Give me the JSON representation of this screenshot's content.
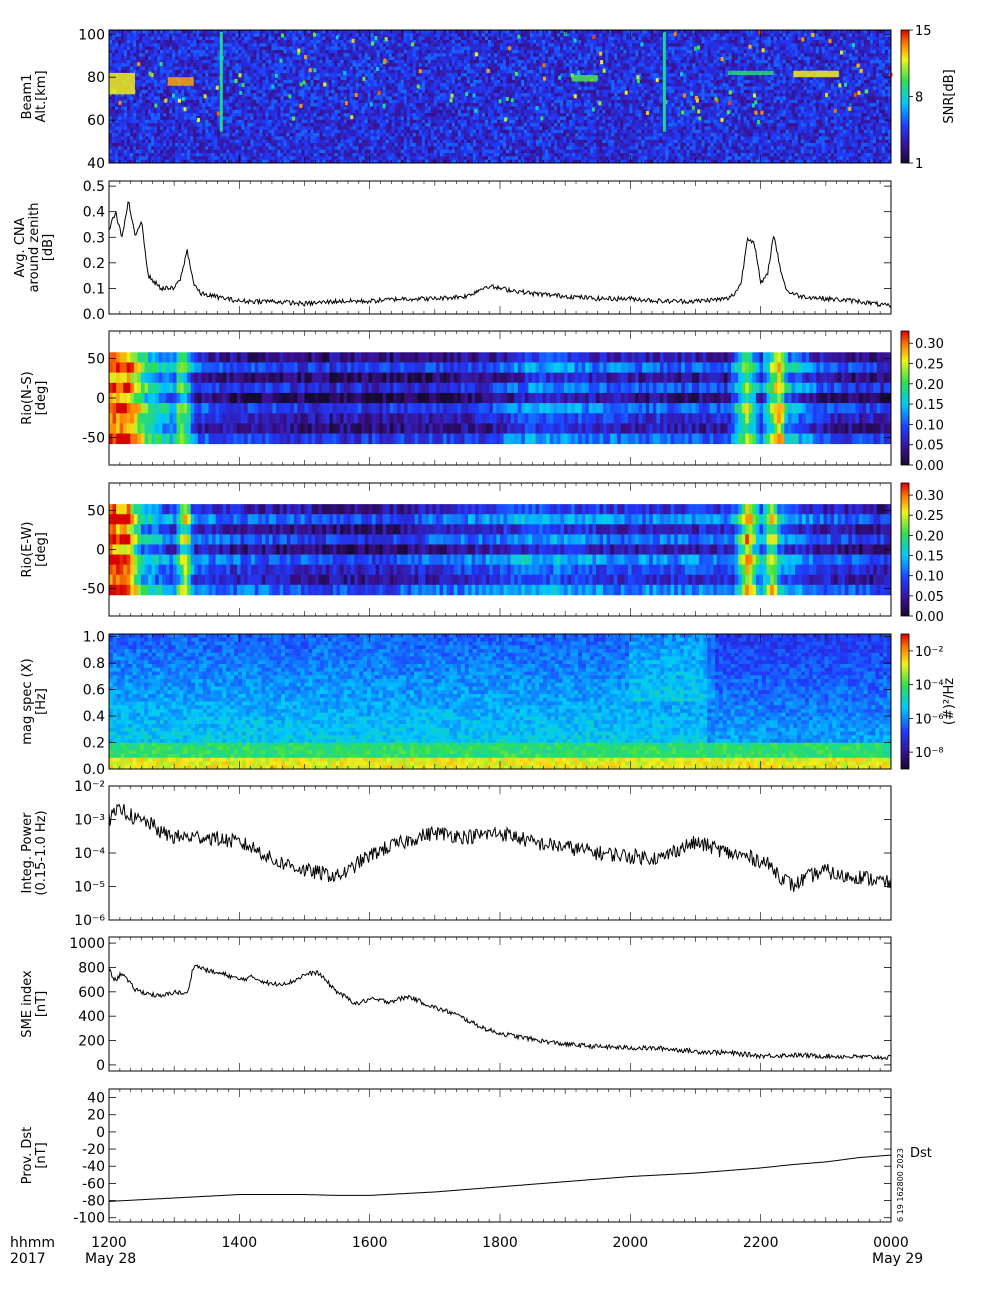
{
  "footer": {
    "left_top": "hhmm",
    "left_bottom": "2017",
    "date_start": "May 28",
    "date_end": "May 29",
    "x_ticks": [
      "1200",
      "1400",
      "1600",
      "1800",
      "2000",
      "2200",
      "0000"
    ]
  },
  "side_note": "6 19 162800 2023",
  "dst_label": "Dst",
  "colors": {
    "line": "#000000",
    "jet_low": "#1a0b3b",
    "jet_mid": "#1e6cff",
    "jet_high": "#e01010"
  },
  "chart_data": [
    {
      "type": "heatmap",
      "ylabel": [
        "Beam1",
        "Alt.[km]"
      ],
      "ylim": [
        40,
        102
      ],
      "y_ticks": [
        "100",
        "80",
        "60",
        "40"
      ],
      "colorbar": {
        "label": "SNR[dB]",
        "ticks": [
          "15",
          "8",
          "1"
        ],
        "range": [
          1,
          15
        ]
      },
      "description_values": {
        "background_snr": 3,
        "features": [
          {
            "x_hours": [
              0.0,
              0.4
            ],
            "alt": [
              72,
              82
            ],
            "snr": 12
          },
          {
            "x_hours": [
              0.9,
              1.3
            ],
            "alt": [
              76,
              80
            ],
            "snr": 13
          },
          {
            "x_hours": [
              7.1,
              7.5
            ],
            "alt": [
              78,
              81
            ],
            "snr": 10
          },
          {
            "x_hours": [
              9.5,
              10.2
            ],
            "alt": [
              81,
              83
            ],
            "snr": 9
          },
          {
            "x_hours": [
              10.5,
              11.2
            ],
            "alt": [
              80,
              83
            ],
            "snr": 12
          }
        ]
      }
    },
    {
      "type": "line",
      "ylabel": [
        "Avg. CNA",
        "around zenith",
        "[dB]"
      ],
      "ylim": [
        0,
        0.52
      ],
      "y_ticks": [
        "0.5",
        "0.4",
        "0.3",
        "0.2",
        "0.1",
        "0.0"
      ],
      "x": [
        0.0,
        0.1,
        0.2,
        0.3,
        0.4,
        0.5,
        0.6,
        0.8,
        1.0,
        1.1,
        1.2,
        1.3,
        1.4,
        1.6,
        2.0,
        2.5,
        3.0,
        3.5,
        4.0,
        4.5,
        5.0,
        5.5,
        5.8,
        6.0,
        6.5,
        7.0,
        7.5,
        8.0,
        8.5,
        9.0,
        9.5,
        9.6,
        9.7,
        9.8,
        9.9,
        10.0,
        10.1,
        10.2,
        10.3,
        10.4,
        10.6,
        11.0,
        11.5,
        12.0
      ],
      "y": [
        0.33,
        0.4,
        0.3,
        0.44,
        0.3,
        0.37,
        0.15,
        0.1,
        0.1,
        0.14,
        0.25,
        0.12,
        0.08,
        0.07,
        0.05,
        0.05,
        0.04,
        0.05,
        0.05,
        0.06,
        0.06,
        0.07,
        0.11,
        0.1,
        0.08,
        0.07,
        0.06,
        0.06,
        0.05,
        0.05,
        0.06,
        0.08,
        0.12,
        0.3,
        0.28,
        0.12,
        0.15,
        0.31,
        0.18,
        0.09,
        0.07,
        0.06,
        0.05,
        0.03
      ]
    },
    {
      "type": "heatmap",
      "ylabel": [
        "Rio(N-S)",
        "[deg]"
      ],
      "ylim": [
        -85,
        85
      ],
      "y_ticks": [
        "50",
        "0",
        "-50"
      ],
      "colorbar": {
        "ticks": [
          "0.30",
          "0.25",
          "0.20",
          "0.15",
          "0.10",
          "0.05",
          "0.00"
        ],
        "range": [
          0,
          0.33
        ]
      },
      "rows_range_deg": [
        -58,
        58
      ],
      "profile_x": [
        0.0,
        0.3,
        0.6,
        1.0,
        1.1,
        1.2,
        1.3,
        2.0,
        4.0,
        5.8,
        6.5,
        8.0,
        9.5,
        9.8,
        10.0,
        10.3,
        10.4,
        11.0,
        12.0
      ],
      "profile_v": [
        0.3,
        0.3,
        0.18,
        0.12,
        0.22,
        0.18,
        0.08,
        0.06,
        0.05,
        0.06,
        0.11,
        0.08,
        0.07,
        0.22,
        0.1,
        0.28,
        0.14,
        0.07,
        0.05
      ]
    },
    {
      "type": "heatmap",
      "ylabel": [
        "Rio(E-W)",
        "[deg]"
      ],
      "ylim": [
        -85,
        85
      ],
      "y_ticks": [
        "50",
        "0",
        "-50"
      ],
      "colorbar": {
        "ticks": [
          "0.30",
          "0.25",
          "0.20",
          "0.15",
          "0.10",
          "0.05",
          "0.00"
        ],
        "range": [
          0,
          0.33
        ]
      },
      "rows_range_deg": [
        -58,
        58
      ],
      "profile_x": [
        0.0,
        0.3,
        0.5,
        1.0,
        1.1,
        1.2,
        1.3,
        2.0,
        4.0,
        6.0,
        6.5,
        8.0,
        9.6,
        9.8,
        10.0,
        10.2,
        10.3,
        11.0,
        12.0
      ],
      "profile_v": [
        0.32,
        0.3,
        0.16,
        0.1,
        0.2,
        0.24,
        0.1,
        0.08,
        0.06,
        0.1,
        0.12,
        0.09,
        0.1,
        0.28,
        0.12,
        0.26,
        0.12,
        0.08,
        0.06
      ]
    },
    {
      "type": "heatmap",
      "ylabel": [
        "mag spec (X)",
        "[Hz]"
      ],
      "ylim": [
        0,
        1.02
      ],
      "y_ticks": [
        "1.0",
        "0.8",
        "0.6",
        "0.4",
        "0.2",
        "0.0"
      ],
      "colorbar": {
        "label": "(#)²/Hz",
        "ticks": [
          "10⁻²",
          "10⁻⁴",
          "10⁻⁶",
          "10⁻⁸"
        ],
        "log_range": [
          -9,
          -1
        ]
      }
    },
    {
      "type": "line",
      "ylabel": [
        "Integ. Power",
        "(0.15-1.0 Hz)"
      ],
      "y_scale": "log",
      "ylim_log": [
        -6,
        -2
      ],
      "y_ticks": [
        "10⁻²",
        "10⁻³",
        "10⁻⁴",
        "10⁻⁵",
        "10⁻⁶"
      ],
      "x": [
        0.0,
        0.2,
        0.4,
        0.6,
        0.8,
        1.0,
        1.5,
        2.0,
        2.5,
        3.0,
        3.5,
        3.7,
        4.0,
        4.5,
        5.0,
        5.5,
        6.0,
        6.5,
        7.0,
        7.5,
        8.0,
        8.5,
        9.0,
        9.5,
        10.0,
        10.3,
        10.5,
        11.0,
        11.2,
        11.5,
        12.0
      ],
      "y": [
        0.001,
        0.002,
        0.001,
        0.0008,
        0.0004,
        0.0003,
        0.0003,
        0.0002,
        6e-05,
        3e-05,
        2e-05,
        3e-05,
        8e-05,
        0.0002,
        0.0004,
        0.0003,
        0.0004,
        0.0002,
        0.00015,
        0.0001,
        8e-05,
        7e-05,
        0.0002,
        0.0001,
        6e-05,
        2e-05,
        1e-05,
        3e-05,
        2e-05,
        2e-05,
        1.2e-05
      ]
    },
    {
      "type": "line",
      "ylabel": [
        "SME index",
        "[nT]"
      ],
      "ylim": [
        -50,
        1050
      ],
      "y_ticks": [
        "1000",
        "800",
        "600",
        "400",
        "200",
        "0"
      ],
      "x": [
        0.0,
        0.1,
        0.2,
        0.3,
        0.4,
        0.5,
        0.8,
        1.0,
        1.2,
        1.3,
        1.4,
        1.6,
        1.8,
        2.0,
        2.2,
        2.5,
        2.8,
        3.0,
        3.2,
        3.5,
        3.8,
        4.0,
        4.3,
        4.6,
        5.0,
        5.3,
        5.6,
        5.8,
        6.0,
        6.3,
        6.6,
        7.0,
        7.5,
        8.0,
        8.5,
        9.0,
        9.5,
        10.0,
        10.5,
        11.0,
        12.0
      ],
      "y": [
        780,
        690,
        760,
        680,
        620,
        600,
        560,
        600,
        580,
        820,
        800,
        760,
        740,
        700,
        720,
        660,
        680,
        740,
        760,
        600,
        500,
        540,
        520,
        560,
        470,
        420,
        340,
        290,
        260,
        230,
        200,
        170,
        150,
        140,
        135,
        110,
        100,
        75,
        80,
        72,
        60
      ]
    },
    {
      "type": "line",
      "ylabel": [
        "Prov. Dst",
        "[nT]"
      ],
      "ylim": [
        -105,
        50
      ],
      "y_ticks": [
        "40",
        "20",
        "0",
        "-20",
        "-40",
        "-60",
        "-80",
        "-100"
      ],
      "x": [
        0.0,
        0.5,
        1.0,
        1.5,
        2.0,
        2.5,
        3.0,
        3.5,
        4.0,
        4.5,
        5.0,
        5.5,
        6.0,
        6.5,
        7.0,
        7.5,
        8.0,
        8.5,
        9.0,
        9.5,
        10.0,
        10.5,
        11.0,
        11.5,
        12.0
      ],
      "y": [
        -81,
        -79,
        -77,
        -75,
        -73,
        -73,
        -73,
        -74,
        -74,
        -72,
        -70,
        -67,
        -64,
        -61,
        -58,
        -55,
        -52,
        -50,
        -48,
        -45,
        -42,
        -38,
        -35,
        -30,
        -27
      ]
    }
  ]
}
